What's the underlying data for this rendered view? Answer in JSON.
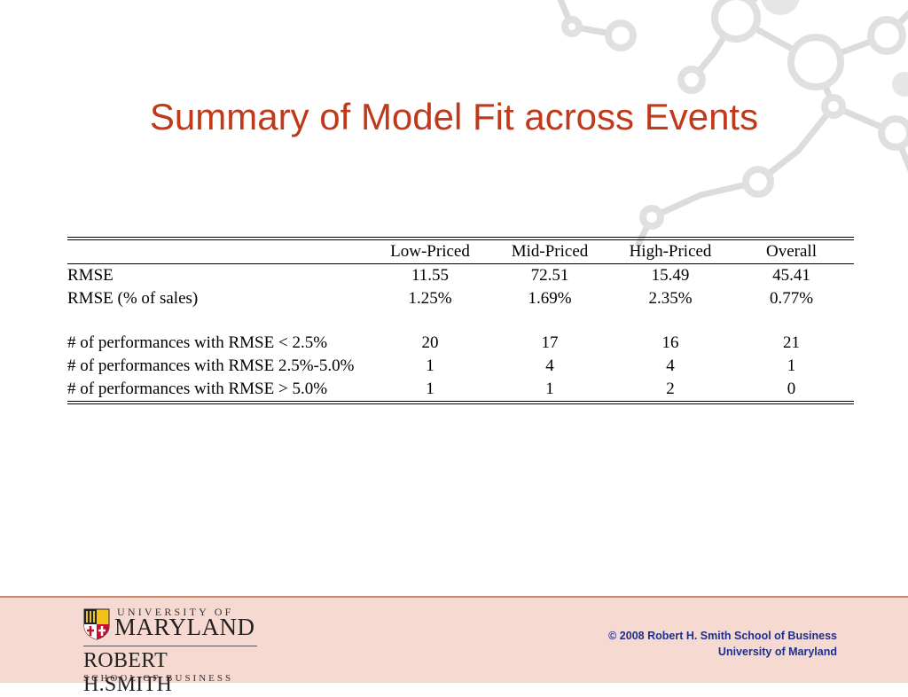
{
  "slide": {
    "title": "Summary of Model Fit across Events"
  },
  "table": {
    "columns": [
      "Low-Priced",
      "Mid-Priced",
      "High-Priced",
      "Overall"
    ],
    "rows": [
      {
        "label": "RMSE",
        "values": [
          "11.55",
          "72.51",
          "15.49",
          "45.41"
        ]
      },
      {
        "label": "RMSE (% of sales)",
        "values": [
          "1.25%",
          "1.69%",
          "2.35%",
          "0.77%"
        ]
      },
      {
        "label": "# of performances with RMSE < 2.5%",
        "values": [
          "20",
          "17",
          "16",
          "21"
        ]
      },
      {
        "label": "# of performances with RMSE 2.5%-5.0%",
        "values": [
          "1",
          "4",
          "4",
          "1"
        ]
      },
      {
        "label": "# of performances with RMSE > 5.0%",
        "values": [
          "1",
          "1",
          "2",
          "0"
        ]
      }
    ]
  },
  "footer": {
    "logo_line1": "UNIVERSITY OF",
    "logo_line2": "MARYLAND",
    "logo_line3": "ROBERT H.SMITH",
    "logo_line4": "SCHOOL OF BUSINESS",
    "copyright_line1": "© 2008 Robert H. Smith School of Business",
    "copyright_line2": "University of Maryland"
  },
  "colors": {
    "title": "#c0391b",
    "footer_bg": "#f6d9d1",
    "copyright": "#1d2f8c"
  }
}
